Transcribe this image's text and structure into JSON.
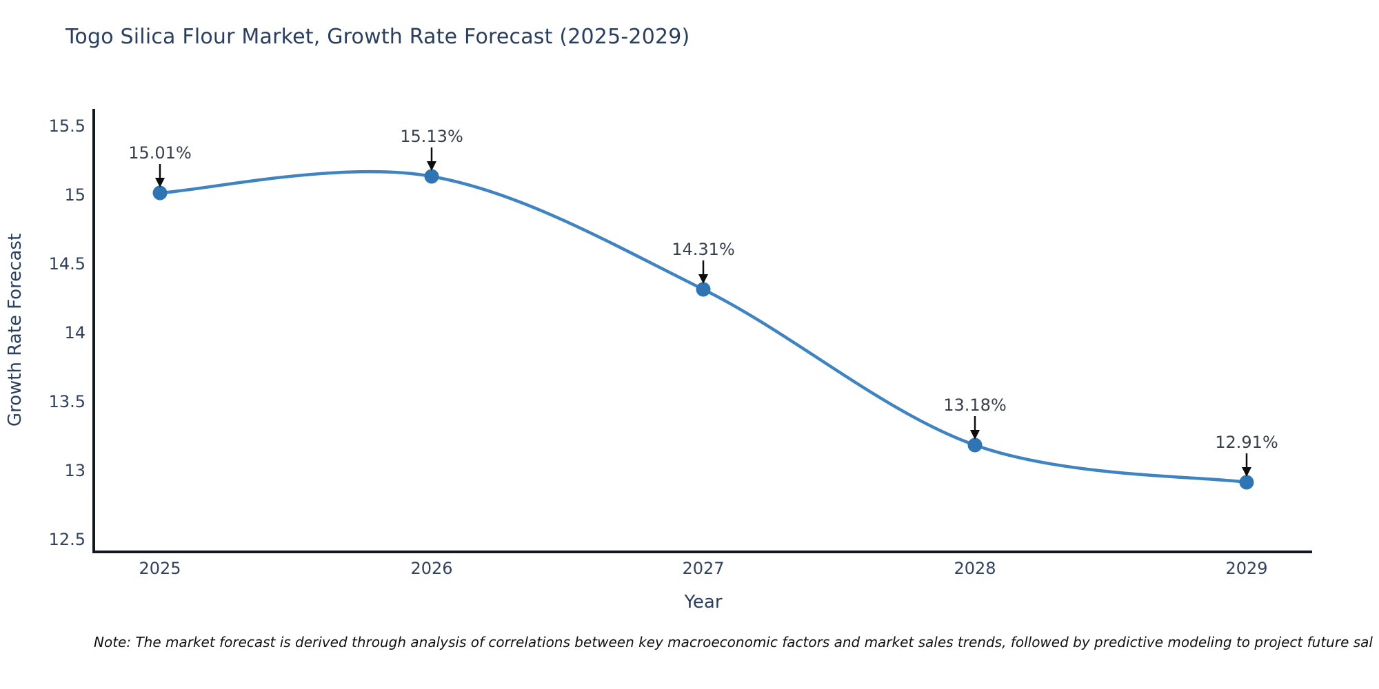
{
  "chart": {
    "title": "Togo Silica Flour Market, Growth Rate Forecast (2025-2029)",
    "note": "Note: The market forecast is derived through analysis of correlations between key macroeconomic factors and market sales trends, followed by predictive modeling to project future sal"
  },
  "chart_data": {
    "type": "line",
    "title": "Togo Silica Flour Market, Growth Rate Forecast (2025-2029)",
    "xlabel": "Year",
    "ylabel": "Growth Rate Forecast",
    "x": [
      2025,
      2026,
      2027,
      2028,
      2029
    ],
    "series": [
      {
        "name": "Growth Rate Forecast",
        "values": [
          15.01,
          15.13,
          14.31,
          13.18,
          12.91
        ]
      }
    ],
    "point_labels": [
      "15.01%",
      "15.13%",
      "14.31%",
      "13.18%",
      "12.91%"
    ],
    "xtick_labels": [
      "2025",
      "2026",
      "2027",
      "2028",
      "2029"
    ],
    "ytick_values": [
      12.5,
      13,
      13.5,
      14,
      14.5,
      15,
      15.5
    ],
    "ytick_labels": [
      "12.5",
      "13",
      "13.5",
      "14",
      "14.5",
      "15",
      "15.5"
    ],
    "ylim": [
      12.5,
      15.5
    ],
    "grid": false,
    "legend_position": "none",
    "line_shape": "spline",
    "line_color": "#3f83c0",
    "marker_color": "#2f74b3",
    "annotation_arrow_color": "#0d0d0d"
  },
  "colors": {
    "title_text": "#2a3f5f",
    "tick_text": "#33415c",
    "axis_line": "#14181d",
    "annotation_text": "#373f4b",
    "note_text": "#111111",
    "background": "#ffffff"
  }
}
